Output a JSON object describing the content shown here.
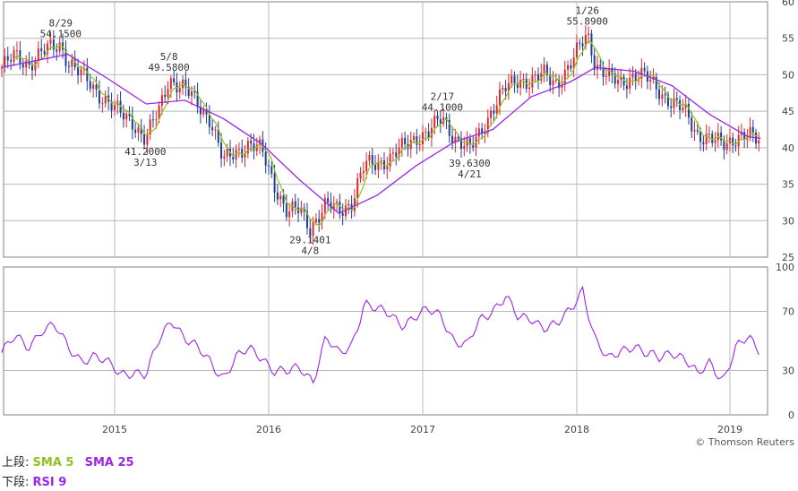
{
  "chart_data": [
    {
      "type": "candlestick",
      "title": "",
      "x_ticks": [
        "2015",
        "2016",
        "2017",
        "2018",
        "2019"
      ],
      "ylim": [
        25,
        60
      ],
      "y_ticks": [
        25,
        30,
        35,
        40,
        45,
        50,
        55,
        60
      ],
      "grid": true,
      "series": [
        {
          "name": "SMA 5",
          "color": "#8fc31f"
        },
        {
          "name": "SMA 25",
          "color": "#9c26e8"
        }
      ],
      "price_path": [
        [
          "2014-04",
          51.0
        ],
        [
          "2014-05",
          52.5
        ],
        [
          "2014-06",
          51.5
        ],
        [
          "2014-07",
          53.0
        ],
        [
          "2014-08-29",
          54.15
        ],
        [
          "2014-09",
          52.0
        ],
        [
          "2014-10",
          50.0
        ],
        [
          "2014-11",
          48.0
        ],
        [
          "2014-12",
          46.5
        ],
        [
          "2015-01",
          44.5
        ],
        [
          "2015-02",
          43.5
        ],
        [
          "2015-03-13",
          41.2
        ],
        [
          "2015-04",
          45.0
        ],
        [
          "2015-05-08",
          49.58
        ],
        [
          "2015-06",
          48.0
        ],
        [
          "2015-07",
          46.0
        ],
        [
          "2015-08",
          44.0
        ],
        [
          "2015-09",
          38.0
        ],
        [
          "2015-10",
          39.5
        ],
        [
          "2015-11",
          40.5
        ],
        [
          "2015-12",
          39.5
        ],
        [
          "2016-01",
          35.0
        ],
        [
          "2016-02",
          31.0
        ],
        [
          "2016-03",
          31.5
        ],
        [
          "2016-04-08",
          29.14
        ],
        [
          "2016-05",
          32.0
        ],
        [
          "2016-06",
          31.5
        ],
        [
          "2016-07",
          32.5
        ],
        [
          "2016-08",
          37.5
        ],
        [
          "2016-09",
          38.0
        ],
        [
          "2016-10",
          38.5
        ],
        [
          "2016-11",
          40.0
        ],
        [
          "2016-12",
          41.5
        ],
        [
          "2017-01",
          42.0
        ],
        [
          "2017-02-17",
          44.1
        ],
        [
          "2017-03",
          41.5
        ],
        [
          "2017-04-21",
          39.63
        ],
        [
          "2017-05",
          42.0
        ],
        [
          "2017-06",
          45.5
        ],
        [
          "2017-07",
          48.0
        ],
        [
          "2017-08",
          49.5
        ],
        [
          "2017-09",
          49.0
        ],
        [
          "2017-10",
          50.0
        ],
        [
          "2017-11",
          49.0
        ],
        [
          "2017-12",
          51.0
        ],
        [
          "2018-01-26",
          55.89
        ],
        [
          "2018-02",
          51.5
        ],
        [
          "2018-03",
          49.5
        ],
        [
          "2018-04",
          49.0
        ],
        [
          "2018-05",
          50.0
        ],
        [
          "2018-06",
          49.5
        ],
        [
          "2018-07",
          48.0
        ],
        [
          "2018-08",
          46.0
        ],
        [
          "2018-09",
          45.0
        ],
        [
          "2018-10",
          42.0
        ],
        [
          "2018-11",
          41.0
        ],
        [
          "2018-12",
          40.5
        ],
        [
          "2019-01",
          41.5
        ],
        [
          "2019-02",
          41.5
        ],
        [
          "2019-03",
          41.0
        ]
      ],
      "sma25_path": [
        [
          "2014-04",
          51.0
        ],
        [
          "2014-09",
          52.8
        ],
        [
          "2014-12",
          49.5
        ],
        [
          "2015-03",
          46.0
        ],
        [
          "2015-06",
          46.5
        ],
        [
          "2015-09",
          44.0
        ],
        [
          "2015-12",
          40.5
        ],
        [
          "2016-03",
          35.5
        ],
        [
          "2016-06",
          31.0
        ],
        [
          "2016-09",
          33.5
        ],
        [
          "2016-12",
          37.5
        ],
        [
          "2017-03",
          40.8
        ],
        [
          "2017-06",
          42.5
        ],
        [
          "2017-09",
          47.0
        ],
        [
          "2017-12",
          49.0
        ],
        [
          "2018-02",
          51.0
        ],
        [
          "2018-05",
          50.5
        ],
        [
          "2018-08",
          48.5
        ],
        [
          "2018-11",
          44.5
        ],
        [
          "2019-02",
          41.5
        ],
        [
          "2019-03",
          41.3
        ]
      ],
      "annotations": [
        {
          "date": "8/29",
          "value": "54.1500",
          "position": "above"
        },
        {
          "date": "3/13",
          "value": "41.2000",
          "position": "below"
        },
        {
          "date": "5/8",
          "value": "49.5800",
          "position": "above"
        },
        {
          "date": "4/8",
          "value": "29.1401",
          "position": "below"
        },
        {
          "date": "2/17",
          "value": "44.1000",
          "position": "above"
        },
        {
          "date": "4/21",
          "value": "39.6300",
          "position": "below"
        },
        {
          "date": "1/26",
          "value": "55.8900",
          "position": "above"
        }
      ]
    },
    {
      "type": "line",
      "title": "",
      "x_ticks": [
        "2015",
        "2016",
        "2017",
        "2018",
        "2019"
      ],
      "ylim": [
        0,
        100
      ],
      "y_ticks": [
        0,
        30,
        70,
        100
      ],
      "grid": true,
      "series": [
        {
          "name": "RSI 9",
          "color": "#9c26e8",
          "points": [
            [
              "2014-04",
              42
            ],
            [
              "2014-05",
              52
            ],
            [
              "2014-06",
              46
            ],
            [
              "2014-07",
              58
            ],
            [
              "2014-08",
              60
            ],
            [
              "2014-09",
              45
            ],
            [
              "2014-10",
              38
            ],
            [
              "2014-11",
              40
            ],
            [
              "2014-12",
              34
            ],
            [
              "2015-01",
              28
            ],
            [
              "2015-02",
              30
            ],
            [
              "2015-03",
              26
            ],
            [
              "2015-04",
              50
            ],
            [
              "2015-05",
              66
            ],
            [
              "2015-06",
              52
            ],
            [
              "2015-07",
              44
            ],
            [
              "2015-08",
              36
            ],
            [
              "2015-09",
              26
            ],
            [
              "2015-10",
              38
            ],
            [
              "2015-11",
              44
            ],
            [
              "2015-12",
              40
            ],
            [
              "2016-01",
              30
            ],
            [
              "2016-02",
              28
            ],
            [
              "2016-03",
              32
            ],
            [
              "2016-04",
              24
            ],
            [
              "2016-05",
              52
            ],
            [
              "2016-06",
              40
            ],
            [
              "2016-07",
              48
            ],
            [
              "2016-08",
              76
            ],
            [
              "2016-09",
              70
            ],
            [
              "2016-10",
              68
            ],
            [
              "2016-11",
              62
            ],
            [
              "2016-12",
              66
            ],
            [
              "2017-01",
              70
            ],
            [
              "2017-02",
              68
            ],
            [
              "2017-03",
              50
            ],
            [
              "2017-04",
              46
            ],
            [
              "2017-05",
              64
            ],
            [
              "2017-06",
              72
            ],
            [
              "2017-07",
              80
            ],
            [
              "2017-08",
              64
            ],
            [
              "2017-09",
              66
            ],
            [
              "2017-10",
              60
            ],
            [
              "2017-11",
              60
            ],
            [
              "2017-12",
              70
            ],
            [
              "2018-01",
              86
            ],
            [
              "2018-02",
              50
            ],
            [
              "2018-03",
              36
            ],
            [
              "2018-04",
              44
            ],
            [
              "2018-05",
              48
            ],
            [
              "2018-06",
              40
            ],
            [
              "2018-07",
              38
            ],
            [
              "2018-08",
              44
            ],
            [
              "2018-09",
              38
            ],
            [
              "2018-10",
              26
            ],
            [
              "2018-11",
              36
            ],
            [
              "2018-12",
              24
            ],
            [
              "2019-01",
              44
            ],
            [
              "2019-02",
              52
            ],
            [
              "2019-03",
              44
            ]
          ]
        }
      ]
    }
  ],
  "legend": {
    "upper_prefix": "上段:",
    "sma5": "SMA 5",
    "sma25": "SMA 25",
    "lower_prefix": "下段:",
    "rsi": "RSI 9"
  },
  "copyright": "© Thomson Reuters",
  "colors": {
    "up_candle": "#e0262b",
    "down_candle": "#1f3d99",
    "sma5": "#8fc31f",
    "sma25": "#9c26e8",
    "grid": "#b8b8b8",
    "frame": "#808080",
    "axis_text": "#444444"
  }
}
